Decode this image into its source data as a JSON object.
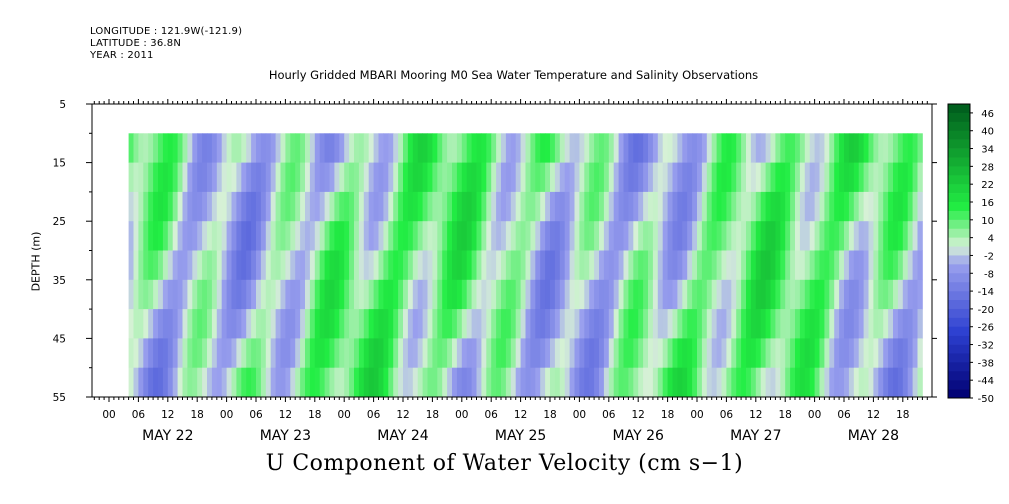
{
  "header": {
    "longitude": "LONGITUDE : 121.9W(-121.9)",
    "latitude": "LATITUDE : 36.8N",
    "year": "YEAR : 2011"
  },
  "chart_data": {
    "type": "heatmap",
    "title": "Hourly Gridded MBARI Mooring M0 Sea Water Temperature and Salinity Observations",
    "variable_label": "U Component of Water Velocity (cm s−1)",
    "ylabel": "DEPTH (m)",
    "y_axis": {
      "range": [
        5,
        55
      ],
      "inverted": true,
      "ticks": [
        5,
        15,
        25,
        35,
        45,
        55
      ],
      "minor_ticks": [
        10,
        20,
        30,
        40,
        50
      ]
    },
    "x_axis": {
      "hour_ticks": [
        "00",
        "06",
        "12",
        "18",
        "00",
        "06",
        "12",
        "18",
        "00",
        "06",
        "12",
        "18",
        "00",
        "06",
        "12",
        "18",
        "00",
        "06",
        "12",
        "18",
        "00",
        "06",
        "12",
        "18",
        "00",
        "06",
        "12",
        "18"
      ],
      "day_labels": [
        "MAY 22",
        "MAY 23",
        "MAY 24",
        "MAY 25",
        "MAY 26",
        "MAY 27",
        "MAY 28"
      ],
      "data_start_hour_offset": 4,
      "data_end_hour_offset": 166,
      "data_depth_range": [
        10,
        55
      ]
    },
    "colorbar": {
      "labels": [
        "46",
        "40",
        "34",
        "28",
        "22",
        "16",
        "10",
        "4",
        "-2",
        "-8",
        "-14",
        "-20",
        "-26",
        "-32",
        "-38",
        "-44",
        "-50"
      ],
      "min": -50,
      "max": 49,
      "step": 3
    },
    "colors": {
      "strong_negative": "#000070",
      "negative": "#2c3fd0",
      "slight_negative": "#9aa0ee",
      "near_zero": "#d6f1d6",
      "positive": "#22ee44",
      "strong_positive": "#005a1c"
    }
  }
}
